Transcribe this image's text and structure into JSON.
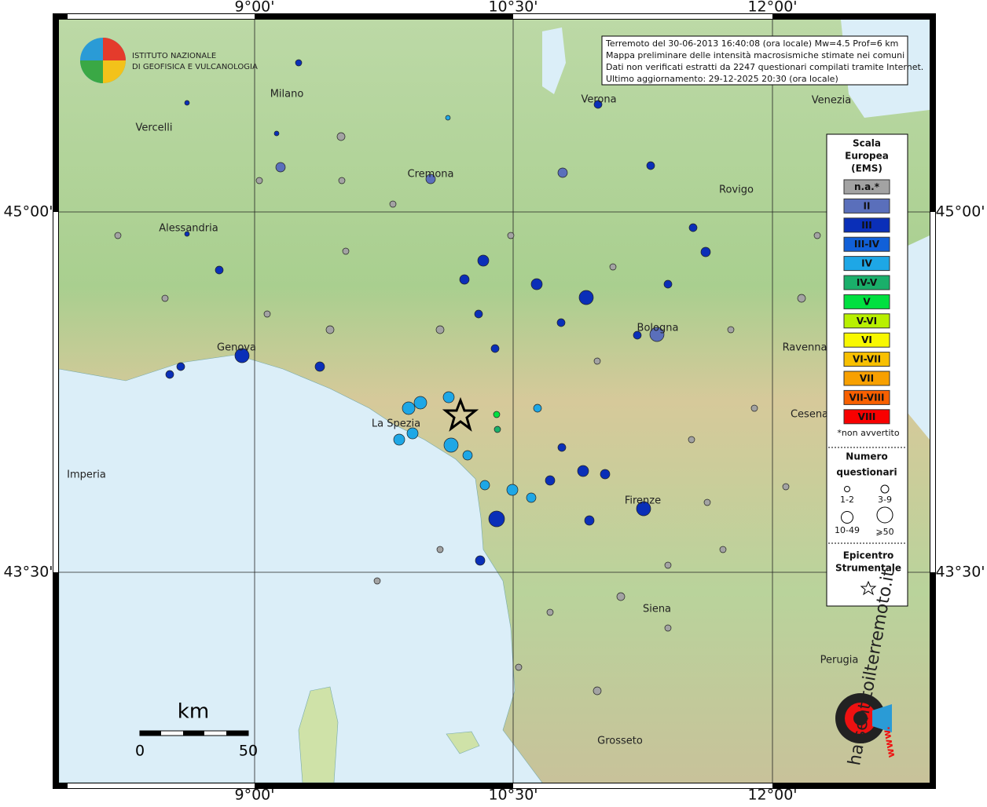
{
  "lon_labels": [
    "9°00'",
    "10°30'",
    "12°00'"
  ],
  "lat_labels": [
    "45°00'",
    "43°30'"
  ],
  "cities": [
    "Milano",
    "Vercelli",
    "Cremona",
    "Verona",
    "Venezia",
    "Rovigo",
    "Alessandria",
    "Genova",
    "Bologna",
    "Ravenna",
    "La Spezia",
    "Cesena",
    "Imperia",
    "Firenze",
    "Siena",
    "Perugia",
    "Grosseto"
  ],
  "info_box": [
    "Terremoto del 30-06-2013 16:40:08 (ora locale) Mw=4.5 Prof=6 km",
    "Mappa preliminare delle intensità macrosismiche stimate nei comuni",
    "Dati non verificati estratti da 2247 questionari compilati tramite Internet.",
    "Ultimo aggiornamento: 29-12-2025 20:30 (ora locale)"
  ],
  "institute": [
    "ISTITUTO NAZIONALE",
    "DI GEOFISICA E VULCANOLOGIA"
  ],
  "legend": {
    "title": [
      "Scala",
      "Europea",
      "(EMS)"
    ],
    "intensity": [
      {
        "label": "n.a.*",
        "color": "#a3a3a3"
      },
      {
        "label": "II",
        "color": "#5a6fbb"
      },
      {
        "label": "III",
        "color": "#0a2fb8"
      },
      {
        "label": "III-IV",
        "color": "#1160d8"
      },
      {
        "label": "IV",
        "color": "#1ea7e6"
      },
      {
        "label": "IV-V",
        "color": "#1aaf6a"
      },
      {
        "label": "V",
        "color": "#00e040"
      },
      {
        "label": "V-VI",
        "color": "#b8f000"
      },
      {
        "label": "VI",
        "color": "#f8f800"
      },
      {
        "label": "VI-VII",
        "color": "#f8c000"
      },
      {
        "label": "VII",
        "color": "#f8a000"
      },
      {
        "label": "VII-VIII",
        "color": "#f86000"
      },
      {
        "label": "VIII",
        "color": "#f80000"
      }
    ],
    "footnote": "*non avvertito",
    "size_title": [
      "Numero",
      "questionari"
    ],
    "sizes": [
      "1-2",
      "3-9",
      "10-49",
      "⩾50"
    ],
    "epicenter_title": [
      "Epicentro",
      "Strumentale"
    ]
  },
  "scale_bar": {
    "unit": "km",
    "start": 0,
    "end": 50
  },
  "site": {
    "name": "haisentitoilterremoto.it",
    "prefix": "www."
  }
}
